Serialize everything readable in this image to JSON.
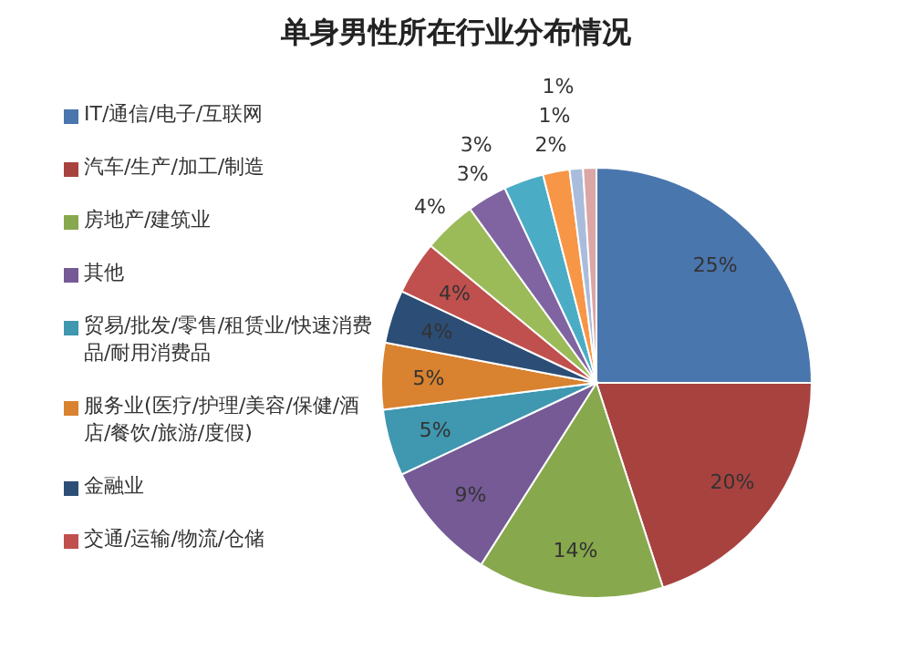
{
  "chart_data": {
    "type": "pie",
    "title": "单身男性所在行业分布情况",
    "categories": [
      "IT/通信/电子/互联网",
      "汽车/生产/加工/制造",
      "房地产/建筑业",
      "其他",
      "贸易/批发/零售/租赁业/快速消费品/耐用消费品",
      "服务业(医疗/护理/美容/保健/酒店/餐饮/旅游/度假)",
      "金融业",
      "交通/运输/物流/仓储",
      null,
      null,
      null,
      null,
      null,
      null
    ],
    "values": [
      25,
      20,
      14,
      9,
      5,
      5,
      4,
      4,
      4,
      3,
      3,
      2,
      1,
      1
    ],
    "colors": [
      "#4a76ae",
      "#a8423f",
      "#87a84c",
      "#755a96",
      "#3f97b0",
      "#d9822f",
      "#2c4d75",
      "#c0504d",
      "#9bbb59",
      "#8064a2",
      "#4bacc6",
      "#f79646",
      "#a9bcdc",
      "#dba6a5"
    ],
    "value_labels": [
      "25%",
      "20%",
      "14%",
      "9%",
      "5%",
      "5%",
      "4%",
      "4%",
      "4%",
      "3%",
      "3%",
      "2%",
      "1%",
      "1%"
    ],
    "legend": "left"
  }
}
